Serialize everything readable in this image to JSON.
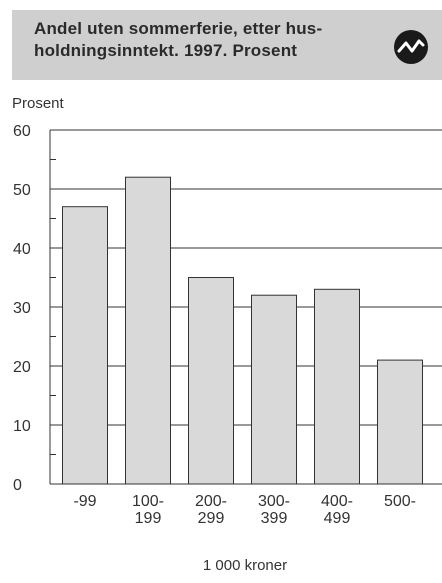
{
  "header": {
    "title": "Andel uten sommerferie, etter hus-holdningsinntekt. 1997. Prosent",
    "icon": "zigzag-line-icon"
  },
  "chart_data": {
    "type": "bar",
    "title": "Andel uten sommerferie, etter hus-holdningsinntekt. 1997. Prosent",
    "ylabel": "Prosent",
    "xlabel": "1 000 kroner",
    "ylim": [
      0,
      60
    ],
    "yticks": [
      0,
      10,
      20,
      30,
      40,
      50,
      60
    ],
    "grid": true,
    "categories": [
      [
        "-99"
      ],
      [
        "100-",
        "199"
      ],
      [
        "200-",
        "299"
      ],
      [
        "300-",
        "399"
      ],
      [
        "400-",
        "499"
      ],
      [
        "500-"
      ]
    ],
    "values": [
      47,
      52,
      35,
      32,
      33,
      21
    ],
    "bar_color": "#d9d9d9"
  }
}
